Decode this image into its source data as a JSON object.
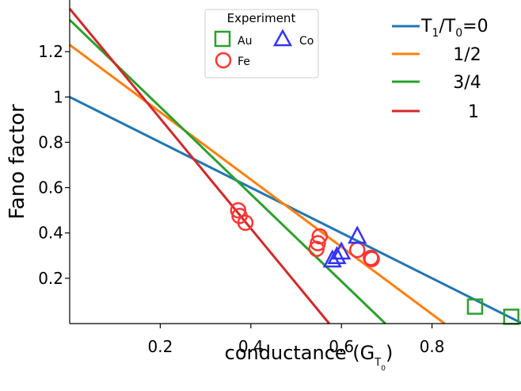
{
  "chart_data": {
    "type": "line",
    "xlabel": "conductance (G",
    "xlabel_sub": "T",
    "xlabel_subsub": "0",
    "xlabel_close": ")",
    "ylabel": "Fano factor",
    "xlim": [
      0,
      1
    ],
    "ylim": [
      0,
      1.4
    ],
    "xticks": [
      0.2,
      0.4,
      0.6,
      0.8
    ],
    "xtick_labels": [
      "0.2",
      "0.4",
      "0.6",
      "0.8"
    ],
    "yticks": [
      0.2,
      0.4,
      0.6,
      0.8,
      1.0,
      1.2
    ],
    "ytick_labels": [
      "0.2",
      "0.4",
      "0.6",
      "0.8",
      "1",
      "1.2"
    ],
    "grid": false,
    "series": [
      {
        "name": "T1/T0=0",
        "label_parts": [
          "T",
          "1",
          "/T",
          "0",
          "=0"
        ],
        "color": "#1f77b4",
        "x": [
          0,
          1
        ],
        "y": [
          1.0,
          0.0
        ]
      },
      {
        "name": "1/2",
        "color": "#ff7f0e",
        "x": [
          0,
          0.828
        ],
        "y": [
          1.23,
          0.0
        ]
      },
      {
        "name": "3/4",
        "color": "#2ca02c",
        "x": [
          0,
          0.697
        ],
        "y": [
          1.34,
          0.0
        ]
      },
      {
        "name": "1",
        "color": "#d62728",
        "x": [
          0,
          0.573
        ],
        "y": [
          1.39,
          0.0
        ]
      }
    ],
    "experiment_legend": {
      "title": "Experiment",
      "entries": [
        {
          "name": "Au",
          "marker": "square",
          "color": "#2ca02c"
        },
        {
          "name": "Co",
          "marker": "triangle",
          "color": "#3333ff"
        },
        {
          "name": "Fe",
          "marker": "circle",
          "color": "#ff3333"
        }
      ]
    },
    "experiment_points": [
      {
        "name": "Au",
        "marker": "square",
        "color": "#2ca02c",
        "points": [
          [
            0.895,
            0.075
          ],
          [
            0.975,
            0.03
          ]
        ]
      },
      {
        "name": "Fe",
        "marker": "circle",
        "color": "#ff3333",
        "points": [
          [
            0.372,
            0.5
          ],
          [
            0.375,
            0.475
          ],
          [
            0.388,
            0.445
          ],
          [
            0.545,
            0.33
          ],
          [
            0.548,
            0.355
          ],
          [
            0.552,
            0.385
          ],
          [
            0.635,
            0.325
          ],
          [
            0.665,
            0.29
          ],
          [
            0.667,
            0.285
          ]
        ]
      },
      {
        "name": "Co",
        "marker": "triangle",
        "color": "#3333ff",
        "points": [
          [
            0.58,
            0.28
          ],
          [
            0.59,
            0.295
          ],
          [
            0.6,
            0.315
          ],
          [
            0.635,
            0.385
          ]
        ]
      }
    ]
  }
}
